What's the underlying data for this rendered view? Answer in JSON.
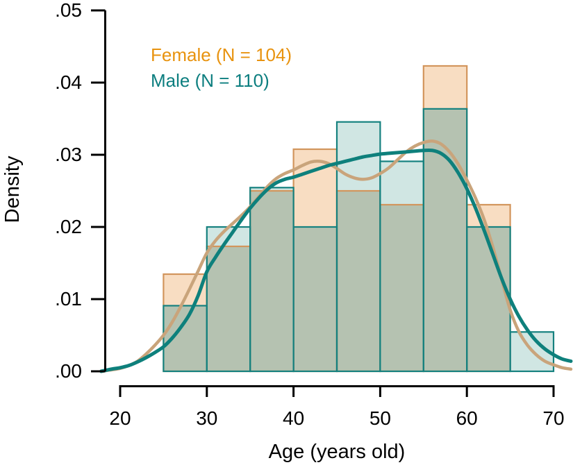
{
  "chart_data": {
    "type": "histogram+density",
    "title": "",
    "xlabel": "Age (years old)",
    "ylabel": "Density",
    "xlim": [
      20,
      70
    ],
    "ylim": [
      0,
      0.05
    ],
    "grid": false,
    "legend_position": "top-left-inside",
    "x_ticks": [
      20,
      30,
      40,
      50,
      60,
      70
    ],
    "y_ticks": [
      {
        "value": 0.0,
        "label": ".00"
      },
      {
        "value": 0.01,
        "label": ".01"
      },
      {
        "value": 0.02,
        "label": ".02"
      },
      {
        "value": 0.03,
        "label": ".03"
      },
      {
        "value": 0.04,
        "label": ".04"
      },
      {
        "value": 0.05,
        "label": ".05"
      }
    ],
    "bin_width": 5,
    "bin_edges": [
      25,
      30,
      35,
      40,
      45,
      50,
      55,
      60,
      65,
      70
    ],
    "overlap_fill": "#b5c2b1",
    "axis_color": "#000000",
    "series": [
      {
        "name": "Female",
        "legend_label": "Female (N = 104)",
        "n": 104,
        "legend_color": "#e8930f",
        "bar_fill": "#f8ddc2",
        "bar_stroke": "#d2955c",
        "curve_color": "#c9a47b",
        "bar_densities": [
          0.01346,
          0.01731,
          0.025,
          0.03077,
          0.025,
          0.02308,
          0.04231,
          0.02308,
          0
        ],
        "curve": [
          [
            17.8,
            0.0
          ],
          [
            19,
            0.0002
          ],
          [
            20,
            0.0004
          ],
          [
            21,
            0.0008
          ],
          [
            22,
            0.0014
          ],
          [
            23,
            0.0024
          ],
          [
            24,
            0.0036
          ],
          [
            25,
            0.005
          ],
          [
            26,
            0.0068
          ],
          [
            27,
            0.009
          ],
          [
            28,
            0.0114
          ],
          [
            29,
            0.0139
          ],
          [
            30,
            0.0164
          ],
          [
            31,
            0.0181
          ],
          [
            32,
            0.0194
          ],
          [
            33,
            0.0205
          ],
          [
            34,
            0.0216
          ],
          [
            35,
            0.0228
          ],
          [
            36,
            0.0242
          ],
          [
            37,
            0.0256
          ],
          [
            38,
            0.0267
          ],
          [
            39,
            0.0274
          ],
          [
            40,
            0.0279
          ],
          [
            41,
            0.0285
          ],
          [
            42,
            0.029
          ],
          [
            43,
            0.0291
          ],
          [
            44,
            0.0288
          ],
          [
            45,
            0.0281
          ],
          [
            46,
            0.0273
          ],
          [
            47,
            0.0268
          ],
          [
            48,
            0.0266
          ],
          [
            49,
            0.0268
          ],
          [
            50,
            0.0274
          ],
          [
            51,
            0.0282
          ],
          [
            52,
            0.0293
          ],
          [
            53,
            0.0304
          ],
          [
            54,
            0.0312
          ],
          [
            55,
            0.0317
          ],
          [
            56,
            0.0319
          ],
          [
            57,
            0.0315
          ],
          [
            58,
            0.0304
          ],
          [
            59,
            0.0287
          ],
          [
            60,
            0.0265
          ],
          [
            61,
            0.024
          ],
          [
            62,
            0.021
          ],
          [
            63,
            0.0172
          ],
          [
            64,
            0.0128
          ],
          [
            65,
            0.0085
          ],
          [
            66,
            0.0055
          ],
          [
            67,
            0.0036
          ],
          [
            68,
            0.0023
          ],
          [
            69,
            0.0014
          ],
          [
            70,
            0.0009
          ],
          [
            71,
            0.0005
          ],
          [
            72,
            0.0003
          ]
        ]
      },
      {
        "name": "Male",
        "legend_label": "Male (N = 110)",
        "n": 110,
        "legend_color": "#0c7e7f",
        "bar_fill": "#d0e6e3",
        "bar_stroke": "#15817f",
        "curve_color": "#0e807c",
        "bar_densities": [
          0.00909,
          0.02,
          0.02545,
          0.02,
          0.03455,
          0.02909,
          0.03636,
          0.02,
          0.00545
        ],
        "curve": [
          [
            17.8,
            0.0
          ],
          [
            19,
            0.0003
          ],
          [
            20,
            0.0005
          ],
          [
            21,
            0.0008
          ],
          [
            22,
            0.0013
          ],
          [
            23,
            0.0019
          ],
          [
            24,
            0.0026
          ],
          [
            25,
            0.0034
          ],
          [
            26,
            0.0046
          ],
          [
            27,
            0.0061
          ],
          [
            28,
            0.0079
          ],
          [
            29,
            0.0105
          ],
          [
            30,
            0.0138
          ],
          [
            31,
            0.0158
          ],
          [
            32,
            0.0176
          ],
          [
            33,
            0.0193
          ],
          [
            34,
            0.021
          ],
          [
            35,
            0.0226
          ],
          [
            36,
            0.024
          ],
          [
            37,
            0.0252
          ],
          [
            38,
            0.0261
          ],
          [
            39,
            0.0266
          ],
          [
            40,
            0.0269
          ],
          [
            41,
            0.0273
          ],
          [
            42,
            0.0277
          ],
          [
            43,
            0.0281
          ],
          [
            44,
            0.0285
          ],
          [
            45,
            0.0288
          ],
          [
            46,
            0.0291
          ],
          [
            47,
            0.0294
          ],
          [
            48,
            0.0297
          ],
          [
            49,
            0.0299
          ],
          [
            50,
            0.0301
          ],
          [
            51,
            0.0302
          ],
          [
            52,
            0.0303
          ],
          [
            53,
            0.0304
          ],
          [
            54,
            0.0305
          ],
          [
            55,
            0.0306
          ],
          [
            56,
            0.0306
          ],
          [
            57,
            0.0302
          ],
          [
            58,
            0.0292
          ],
          [
            59,
            0.0275
          ],
          [
            60,
            0.0253
          ],
          [
            61,
            0.0226
          ],
          [
            62,
            0.0195
          ],
          [
            63,
            0.0162
          ],
          [
            64,
            0.0129
          ],
          [
            65,
            0.01
          ],
          [
            66,
            0.0076
          ],
          [
            67,
            0.0057
          ],
          [
            68,
            0.0042
          ],
          [
            69,
            0.0031
          ],
          [
            70,
            0.0023
          ],
          [
            71,
            0.0017
          ],
          [
            72,
            0.0014
          ]
        ]
      }
    ]
  }
}
